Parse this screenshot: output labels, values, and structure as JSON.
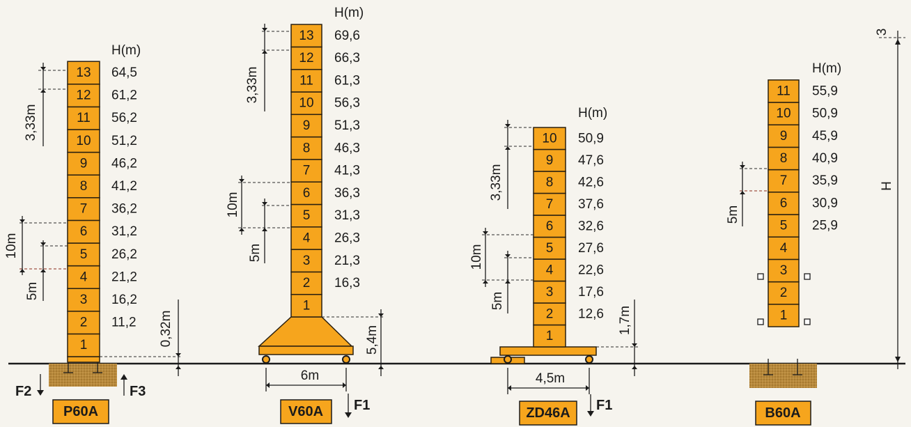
{
  "unit_header": "H(m)",
  "cranes": [
    {
      "id": "p60a",
      "label": "P60A",
      "segments": [
        "1",
        "2",
        "3",
        "4",
        "5",
        "6",
        "7",
        "8",
        "9",
        "10",
        "11",
        "12",
        "13"
      ],
      "heights": [
        "11,2",
        "16,2",
        "21,2",
        "26,2",
        "31,2",
        "36,2",
        "41,2",
        "46,2",
        "51,2",
        "56,2",
        "61,2",
        "64,5"
      ],
      "dims": {
        "segment": "3,33m",
        "ten": "10m",
        "five": "5m",
        "base": "0,32m"
      },
      "forces": [
        "F2",
        "F3"
      ]
    },
    {
      "id": "v60a",
      "label": "V60A",
      "segments": [
        "1",
        "2",
        "3",
        "4",
        "5",
        "6",
        "7",
        "8",
        "9",
        "10",
        "11",
        "12",
        "13"
      ],
      "heights": [
        "16,3",
        "21,3",
        "26,3",
        "31,3",
        "36,3",
        "41,3",
        "46,3",
        "51,3",
        "56,3",
        "61,3",
        "66,3",
        "69,6"
      ],
      "dims": {
        "segment": "3,33m",
        "ten": "10m",
        "five": "5m",
        "base": "5,4m",
        "width": "6m"
      },
      "forces": [
        "F1"
      ]
    },
    {
      "id": "zd46a",
      "label": "ZD46A",
      "segments": [
        "1",
        "2",
        "3",
        "4",
        "5",
        "6",
        "7",
        "8",
        "9",
        "10"
      ],
      "heights": [
        "12,6",
        "17,6",
        "22,6",
        "27,6",
        "32,6",
        "37,6",
        "42,6",
        "47,6",
        "50,9"
      ],
      "dims": {
        "segment": "3,33m",
        "ten": "10m",
        "five": "5m",
        "base": "1,7m",
        "width": "4,5m"
      },
      "forces": [
        "F1"
      ]
    },
    {
      "id": "b60a",
      "label": "B60A",
      "segments": [
        "1",
        "2",
        "3",
        "4",
        "5",
        "6",
        "7",
        "8",
        "9",
        "10",
        "11"
      ],
      "heights": [
        "25,9",
        "30,9",
        "35,9",
        "40,9",
        "45,9",
        "50,9",
        "55,9"
      ],
      "dims": {
        "five": "5m"
      }
    }
  ],
  "overall": {
    "height_label": "H",
    "top_mark": "3"
  }
}
